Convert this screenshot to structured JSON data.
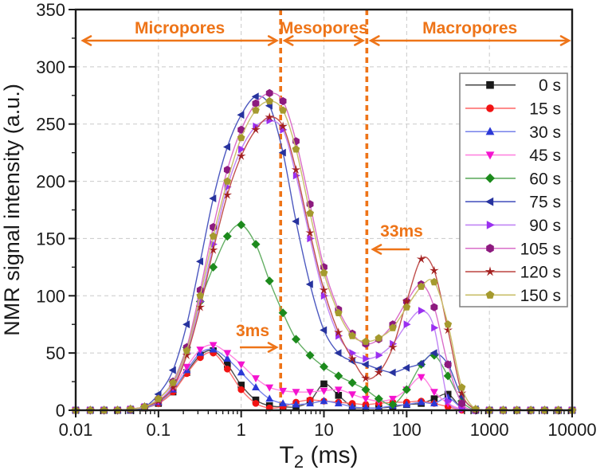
{
  "chart_data": {
    "type": "line",
    "title": "",
    "xlabel": "T2 (ms)",
    "xlabel_parts": {
      "main": "T",
      "sub": "2",
      "rest": " (ms)"
    },
    "ylabel": "NMR signal intensity (a.u.)",
    "x_scale": "log",
    "xlim": [
      0.01,
      10000
    ],
    "ylim": [
      0,
      350
    ],
    "x_tick_labels": [
      "0.01",
      "0.1",
      "1",
      "10",
      "100",
      "1000",
      "10000"
    ],
    "x_tick_values": [
      0.01,
      0.1,
      1,
      10,
      100,
      1000,
      10000
    ],
    "y_tick_labels": [
      "0",
      "50",
      "100",
      "150",
      "200",
      "250",
      "300",
      "350"
    ],
    "y_tick_values": [
      0,
      50,
      100,
      150,
      200,
      250,
      300,
      350
    ],
    "grid": "dashed",
    "grid_color": "#c9c9c9",
    "frame_color": "#1a1a1a",
    "legend_position": "upper right",
    "x": [
      0.01,
      0.015,
      0.022,
      0.032,
      0.046,
      0.068,
      0.1,
      0.15,
      0.22,
      0.32,
      0.46,
      0.68,
      1,
      1.5,
      2.2,
      3.2,
      4.6,
      6.8,
      10,
      15,
      22,
      32,
      46,
      68,
      100,
      150,
      215,
      316,
      464,
      681,
      1000,
      1470,
      2150,
      3160,
      4640,
      6810,
      10000
    ],
    "series": [
      {
        "name": "0 s",
        "time_s": 0,
        "marker": "square",
        "color": "#1a1a1a",
        "line_color": "#4d4d4d",
        "values": [
          0,
          0,
          0,
          0,
          0,
          2,
          6,
          16,
          33,
          48,
          52,
          40,
          22,
          9,
          4,
          3,
          3,
          8,
          23,
          13,
          3,
          2,
          2,
          3,
          5,
          6,
          10,
          14,
          2,
          0,
          0,
          0,
          0,
          0,
          0,
          0,
          0
        ]
      },
      {
        "name": "15 s",
        "time_s": 15,
        "marker": "circle",
        "color": "#f11313",
        "line_color": "#ff7070",
        "values": [
          0,
          0,
          0,
          0,
          0,
          2,
          6,
          16,
          32,
          46,
          50,
          36,
          18,
          6,
          2,
          3,
          7,
          9,
          8,
          7,
          6,
          5,
          6,
          7,
          7,
          8,
          6,
          3,
          0,
          0,
          0,
          0,
          0,
          0,
          0,
          0,
          0
        ]
      },
      {
        "name": "30 s",
        "time_s": 30,
        "marker": "triangle-up",
        "color": "#2b38d6",
        "line_color": "#7680ea",
        "values": [
          0,
          0,
          0,
          0,
          0,
          2,
          7,
          18,
          35,
          50,
          53,
          45,
          33,
          20,
          10,
          6,
          5,
          6,
          8,
          6,
          3,
          2,
          2,
          4,
          5,
          7,
          6,
          11,
          2,
          0,
          0,
          0,
          0,
          0,
          0,
          0,
          0
        ]
      },
      {
        "name": "45 s",
        "time_s": 45,
        "marker": "triangle-down",
        "color": "#f413cf",
        "line_color": "#ff84e0",
        "values": [
          0,
          0,
          0,
          0,
          1,
          3,
          8,
          20,
          38,
          53,
          57,
          50,
          40,
          28,
          20,
          17,
          16,
          16,
          17,
          18,
          14,
          10,
          8,
          10,
          18,
          29,
          16,
          6,
          1,
          0,
          0,
          0,
          0,
          0,
          0,
          0,
          0
        ]
      },
      {
        "name": "60 s",
        "time_s": 60,
        "marker": "diamond",
        "color": "#1c8a1c",
        "line_color": "#63ae63",
        "values": [
          0,
          0,
          0,
          0,
          1,
          3,
          10,
          25,
          55,
          95,
          125,
          152,
          162,
          145,
          113,
          85,
          62,
          48,
          38,
          30,
          24,
          18,
          10,
          5,
          18,
          40,
          48,
          30,
          8,
          0,
          0,
          0,
          0,
          0,
          0,
          0,
          0
        ]
      },
      {
        "name": "75 s",
        "time_s": 75,
        "marker": "triangle-left",
        "color": "#27339e",
        "line_color": "#4d59c0",
        "values": [
          0,
          0,
          0,
          0,
          1,
          3,
          14,
          35,
          75,
          130,
          185,
          230,
          258,
          274,
          266,
          225,
          165,
          110,
          70,
          50,
          43,
          40,
          36,
          33,
          37,
          41,
          50,
          40,
          12,
          1,
          0,
          0,
          0,
          0,
          0,
          0,
          0
        ]
      },
      {
        "name": "90 s",
        "time_s": 90,
        "marker": "triangle-right",
        "color": "#9a2ff0",
        "line_color": "#c084f5",
        "values": [
          0,
          0,
          0,
          0,
          1,
          3,
          8,
          22,
          50,
          95,
          145,
          195,
          228,
          248,
          253,
          245,
          205,
          150,
          100,
          65,
          50,
          45,
          48,
          58,
          75,
          87,
          72,
          8,
          1,
          0,
          0,
          0,
          0,
          0,
          0,
          0,
          0
        ]
      },
      {
        "name": "105 s",
        "time_s": 105,
        "marker": "hexagon",
        "color": "#8d1a7f",
        "line_color": "#da6ec9",
        "values": [
          0,
          0,
          0,
          0,
          1,
          3,
          10,
          25,
          55,
          105,
          160,
          210,
          245,
          268,
          277,
          270,
          235,
          180,
          125,
          88,
          67,
          58,
          62,
          75,
          95,
          110,
          90,
          40,
          6,
          0,
          0,
          0,
          0,
          0,
          0,
          0,
          0
        ]
      },
      {
        "name": "120 s",
        "time_s": 120,
        "marker": "star",
        "color": "#a11f1f",
        "line_color": "#c0504d",
        "values": [
          0,
          0,
          0,
          0,
          1,
          3,
          8,
          20,
          48,
          90,
          140,
          188,
          222,
          245,
          256,
          248,
          210,
          155,
          105,
          68,
          45,
          28,
          33,
          55,
          95,
          132,
          122,
          70,
          15,
          1,
          0,
          0,
          0,
          0,
          0,
          0,
          0
        ]
      },
      {
        "name": "150 s",
        "time_s": 150,
        "marker": "pentagon",
        "color": "#a59a2e",
        "line_color": "#c9bf6a",
        "values": [
          0,
          0,
          0,
          0,
          1,
          3,
          10,
          24,
          52,
          100,
          152,
          200,
          238,
          262,
          270,
          262,
          228,
          172,
          120,
          85,
          65,
          60,
          63,
          72,
          90,
          108,
          112,
          75,
          20,
          1,
          0,
          0,
          0,
          0,
          0,
          0,
          0
        ]
      }
    ],
    "annotations": {
      "accent_color": "#ee7418",
      "regions": [
        {
          "label": "Micropores",
          "from": 0.01,
          "to": 3
        },
        {
          "label": "Mesopores",
          "from": 3,
          "to": 33
        },
        {
          "label": "Macropores",
          "from": 33,
          "to": 10000
        }
      ],
      "cutoff_lines": [
        {
          "x": 3,
          "label": "3ms",
          "arrow": "right"
        },
        {
          "x": 33,
          "label": "33ms",
          "arrow": "left"
        }
      ]
    }
  }
}
